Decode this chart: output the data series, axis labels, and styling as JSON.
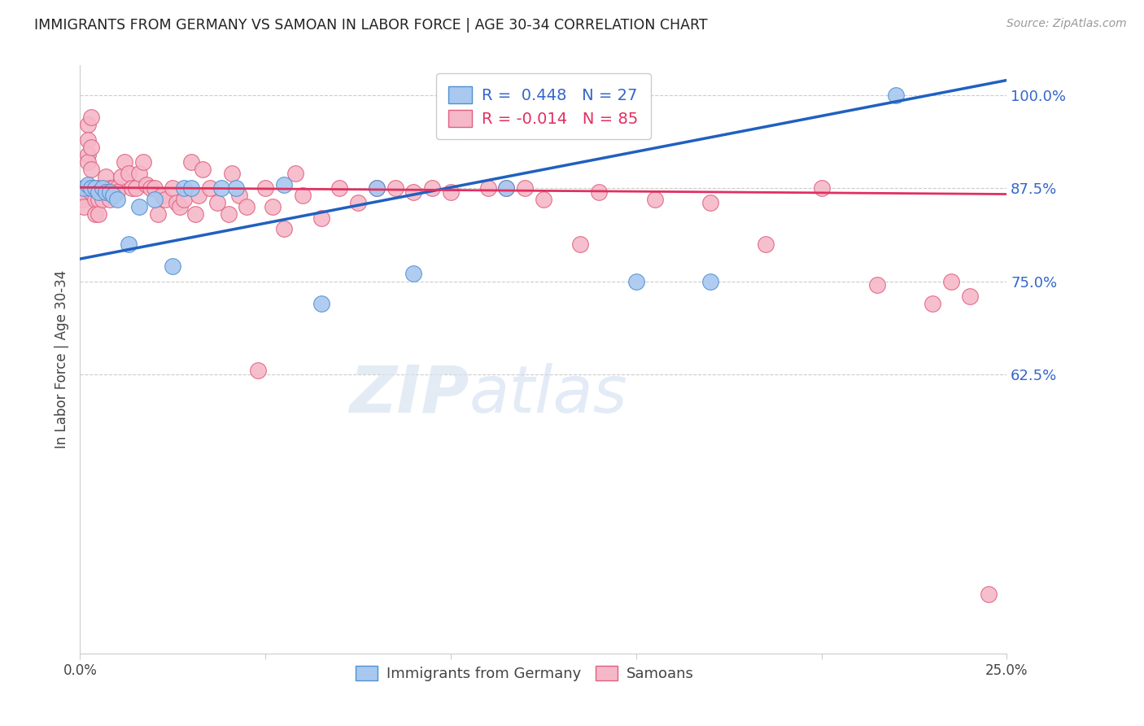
{
  "title": "IMMIGRANTS FROM GERMANY VS SAMOAN IN LABOR FORCE | AGE 30-34 CORRELATION CHART",
  "source_text": "Source: ZipAtlas.com",
  "ylabel": "In Labor Force | Age 30-34",
  "xmin": 0.0,
  "xmax": 0.25,
  "ymin": 0.25,
  "ymax": 1.04,
  "yticks": [
    0.625,
    0.75,
    0.875,
    1.0
  ],
  "ytick_labels": [
    "62.5%",
    "75.0%",
    "87.5%",
    "100.0%"
  ],
  "xticks": [
    0.0,
    0.05,
    0.1,
    0.15,
    0.2,
    0.25
  ],
  "xtick_labels": [
    "0.0%",
    "",
    "",
    "",
    "",
    "25.0%"
  ],
  "germany_R": 0.448,
  "germany_N": 27,
  "samoan_R": -0.014,
  "samoan_N": 85,
  "germany_color": "#a8c8f0",
  "samoan_color": "#f5b8c8",
  "germany_edge_color": "#5090d0",
  "samoan_edge_color": "#e06080",
  "germany_line_color": "#2060c0",
  "samoan_line_color": "#e03060",
  "watermark_zip": "ZIP",
  "watermark_atlas": "atlas",
  "germany_x": [
    0.001,
    0.002,
    0.003,
    0.004,
    0.005,
    0.006,
    0.007,
    0.008,
    0.009,
    0.01,
    0.013,
    0.016,
    0.02,
    0.025,
    0.028,
    0.03,
    0.038,
    0.042,
    0.055,
    0.065,
    0.08,
    0.09,
    0.1,
    0.115,
    0.15,
    0.17,
    0.22
  ],
  "germany_y": [
    0.875,
    0.88,
    0.875,
    0.875,
    0.87,
    0.875,
    0.87,
    0.87,
    0.865,
    0.86,
    0.8,
    0.85,
    0.86,
    0.77,
    0.875,
    0.875,
    0.875,
    0.875,
    0.88,
    0.72,
    0.875,
    0.76,
    0.955,
    0.875,
    0.75,
    0.75,
    1.0
  ],
  "samoan_x": [
    0.001,
    0.001,
    0.001,
    0.001,
    0.002,
    0.002,
    0.002,
    0.002,
    0.002,
    0.003,
    0.003,
    0.003,
    0.003,
    0.003,
    0.004,
    0.004,
    0.004,
    0.005,
    0.005,
    0.005,
    0.006,
    0.006,
    0.007,
    0.007,
    0.008,
    0.008,
    0.009,
    0.01,
    0.01,
    0.011,
    0.012,
    0.013,
    0.014,
    0.015,
    0.016,
    0.017,
    0.018,
    0.019,
    0.02,
    0.021,
    0.022,
    0.023,
    0.025,
    0.026,
    0.027,
    0.028,
    0.03,
    0.031,
    0.032,
    0.033,
    0.035,
    0.037,
    0.04,
    0.041,
    0.043,
    0.045,
    0.048,
    0.05,
    0.052,
    0.055,
    0.058,
    0.06,
    0.065,
    0.07,
    0.075,
    0.08,
    0.085,
    0.09,
    0.095,
    0.1,
    0.11,
    0.115,
    0.12,
    0.125,
    0.135,
    0.14,
    0.155,
    0.17,
    0.185,
    0.2,
    0.215,
    0.23,
    0.235,
    0.24,
    0.245
  ],
  "samoan_y": [
    0.875,
    0.87,
    0.86,
    0.85,
    0.96,
    0.94,
    0.92,
    0.91,
    0.875,
    0.97,
    0.93,
    0.9,
    0.875,
    0.87,
    0.875,
    0.86,
    0.84,
    0.875,
    0.86,
    0.84,
    0.875,
    0.86,
    0.89,
    0.87,
    0.875,
    0.86,
    0.875,
    0.875,
    0.87,
    0.89,
    0.91,
    0.895,
    0.875,
    0.875,
    0.895,
    0.91,
    0.88,
    0.875,
    0.875,
    0.84,
    0.865,
    0.86,
    0.875,
    0.855,
    0.85,
    0.86,
    0.91,
    0.84,
    0.865,
    0.9,
    0.875,
    0.855,
    0.84,
    0.895,
    0.865,
    0.85,
    0.63,
    0.875,
    0.85,
    0.82,
    0.895,
    0.865,
    0.835,
    0.875,
    0.855,
    0.875,
    0.875,
    0.87,
    0.875,
    0.87,
    0.875,
    0.875,
    0.875,
    0.86,
    0.8,
    0.87,
    0.86,
    0.855,
    0.8,
    0.875,
    0.745,
    0.72,
    0.75,
    0.73,
    0.33
  ]
}
